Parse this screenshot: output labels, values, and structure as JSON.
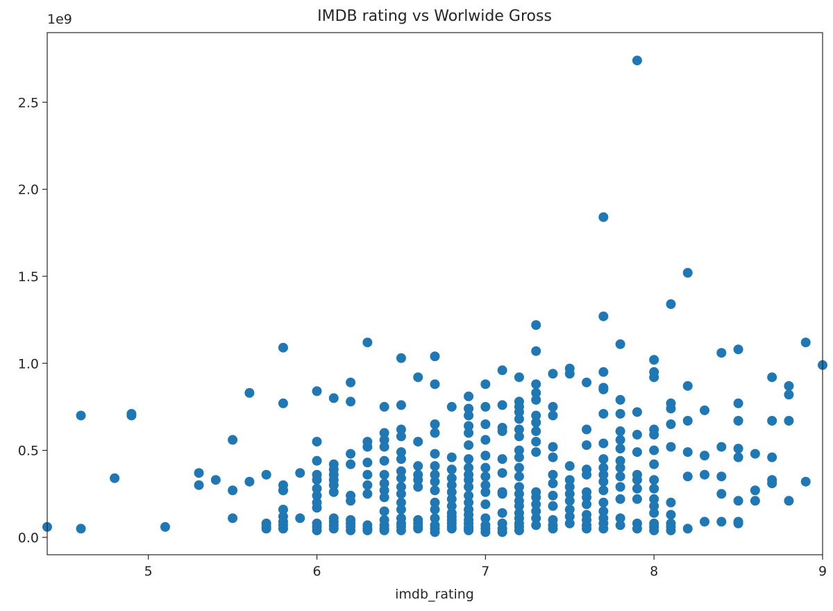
{
  "chart_data": {
    "type": "scatter",
    "title": "IMDB rating vs Worlwide Gross",
    "xlabel": "imdb_rating",
    "ylabel": "",
    "y_offset_label": "1e9",
    "xlim": [
      4.4,
      9.0
    ],
    "ylim": [
      -0.1,
      2.9
    ],
    "grid": false,
    "x_ticks": [
      5,
      6,
      7,
      8,
      9
    ],
    "x_tick_labels": [
      "5",
      "6",
      "7",
      "8",
      "9"
    ],
    "y_ticks": [
      0.0,
      0.5,
      1.0,
      1.5,
      2.0,
      2.5
    ],
    "y_tick_labels": [
      "0.0",
      "0.5",
      "1.0",
      "1.5",
      "2.0",
      "2.5"
    ],
    "colors": {
      "marker": "#1f77b4",
      "axes": "#262626"
    },
    "x": [
      4.4,
      4.6,
      4.6,
      4.8,
      4.9,
      4.9,
      5.1,
      5.3,
      5.3,
      5.4,
      5.5,
      5.5,
      5.5,
      5.6,
      5.6,
      5.7,
      5.7,
      5.7,
      5.7,
      5.8,
      5.8,
      5.8,
      5.8,
      5.8,
      5.8,
      5.8,
      5.8,
      5.8,
      5.8,
      5.9,
      5.9,
      6.0,
      6.0,
      6.0,
      6.0,
      6.0,
      6.0,
      6.0,
      6.0,
      6.0,
      6.0,
      6.0,
      6.0,
      6.1,
      6.1,
      6.1,
      6.1,
      6.1,
      6.1,
      6.1,
      6.1,
      6.1,
      6.1,
      6.1,
      6.2,
      6.2,
      6.2,
      6.2,
      6.2,
      6.2,
      6.2,
      6.2,
      6.2,
      6.2,
      6.3,
      6.3,
      6.3,
      6.3,
      6.3,
      6.3,
      6.3,
      6.3,
      6.3,
      6.3,
      6.4,
      6.4,
      6.4,
      6.4,
      6.4,
      6.4,
      6.4,
      6.4,
      6.4,
      6.4,
      6.4,
      6.4,
      6.4,
      6.4,
      6.5,
      6.5,
      6.5,
      6.5,
      6.5,
      6.5,
      6.5,
      6.5,
      6.5,
      6.5,
      6.5,
      6.5,
      6.5,
      6.5,
      6.5,
      6.5,
      6.6,
      6.6,
      6.6,
      6.6,
      6.6,
      6.6,
      6.6,
      6.6,
      6.6,
      6.6,
      6.7,
      6.7,
      6.7,
      6.7,
      6.7,
      6.7,
      6.7,
      6.7,
      6.7,
      6.7,
      6.7,
      6.7,
      6.7,
      6.7,
      6.7,
      6.8,
      6.8,
      6.8,
      6.8,
      6.8,
      6.8,
      6.8,
      6.8,
      6.8,
      6.8,
      6.8,
      6.8,
      6.8,
      6.8,
      6.9,
      6.9,
      6.9,
      6.9,
      6.9,
      6.9,
      6.9,
      6.9,
      6.9,
      6.9,
      6.9,
      6.9,
      6.9,
      6.9,
      6.9,
      6.9,
      6.9,
      6.9,
      6.9,
      6.9,
      7.0,
      7.0,
      7.0,
      7.0,
      7.0,
      7.0,
      7.0,
      7.0,
      7.0,
      7.0,
      7.0,
      7.0,
      7.0,
      7.0,
      7.1,
      7.1,
      7.1,
      7.1,
      7.1,
      7.1,
      7.1,
      7.1,
      7.1,
      7.1,
      7.1,
      7.1,
      7.2,
      7.2,
      7.2,
      7.2,
      7.2,
      7.2,
      7.2,
      7.2,
      7.2,
      7.2,
      7.2,
      7.2,
      7.2,
      7.2,
      7.2,
      7.2,
      7.2,
      7.2,
      7.2,
      7.2,
      7.3,
      7.3,
      7.3,
      7.3,
      7.3,
      7.3,
      7.3,
      7.3,
      7.3,
      7.3,
      7.3,
      7.3,
      7.3,
      7.3,
      7.3,
      7.3,
      7.4,
      7.4,
      7.4,
      7.4,
      7.4,
      7.4,
      7.4,
      7.4,
      7.4,
      7.4,
      7.4,
      7.4,
      7.5,
      7.5,
      7.5,
      7.5,
      7.5,
      7.5,
      7.5,
      7.5,
      7.5,
      7.5,
      7.6,
      7.6,
      7.6,
      7.6,
      7.6,
      7.6,
      7.6,
      7.6,
      7.6,
      7.6,
      7.6,
      7.6,
      7.7,
      7.7,
      7.7,
      7.7,
      7.7,
      7.7,
      7.7,
      7.7,
      7.7,
      7.7,
      7.7,
      7.7,
      7.7,
      7.7,
      7.7,
      7.7,
      7.7,
      7.8,
      7.8,
      7.8,
      7.8,
      7.8,
      7.8,
      7.8,
      7.8,
      7.8,
      7.8,
      7.8,
      7.8,
      7.8,
      7.9,
      7.9,
      7.9,
      7.9,
      7.9,
      7.9,
      7.9,
      7.9,
      7.9,
      7.9,
      8.0,
      8.0,
      8.0,
      8.0,
      8.0,
      8.0,
      8.0,
      8.0,
      8.0,
      8.0,
      8.0,
      8.0,
      8.0,
      8.0,
      8.0,
      8.1,
      8.1,
      8.1,
      8.1,
      8.1,
      8.1,
      8.1,
      8.1,
      8.1,
      8.1,
      8.2,
      8.2,
      8.2,
      8.2,
      8.2,
      8.2,
      8.3,
      8.3,
      8.3,
      8.3,
      8.4,
      8.4,
      8.4,
      8.4,
      8.4,
      8.5,
      8.5,
      8.5,
      8.5,
      8.5,
      8.5,
      8.5,
      8.5,
      8.6,
      8.6,
      8.6,
      8.7,
      8.7,
      8.7,
      8.7,
      8.7,
      8.8,
      8.8,
      8.8,
      8.8,
      8.9,
      8.9,
      9.0
    ],
    "y": [
      0.06,
      0.7,
      0.05,
      0.34,
      0.7,
      0.71,
      0.06,
      0.37,
      0.3,
      0.33,
      0.56,
      0.27,
      0.11,
      0.83,
      0.32,
      0.36,
      0.08,
      0.06,
      0.05,
      1.09,
      0.77,
      0.3,
      0.27,
      0.16,
      0.12,
      0.09,
      0.07,
      0.05,
      0.27,
      0.37,
      0.11,
      0.84,
      0.55,
      0.44,
      0.36,
      0.33,
      0.28,
      0.24,
      0.17,
      0.08,
      0.06,
      0.04,
      0.2,
      0.8,
      0.42,
      0.39,
      0.36,
      0.33,
      0.3,
      0.26,
      0.09,
      0.07,
      0.05,
      0.11,
      0.89,
      0.78,
      0.48,
      0.42,
      0.24,
      0.21,
      0.08,
      0.06,
      0.04,
      0.1,
      1.12,
      0.55,
      0.52,
      0.43,
      0.36,
      0.3,
      0.25,
      0.07,
      0.05,
      0.04,
      0.75,
      0.6,
      0.56,
      0.52,
      0.44,
      0.36,
      0.31,
      0.27,
      0.23,
      0.15,
      0.1,
      0.07,
      0.05,
      0.04,
      1.03,
      0.76,
      0.62,
      0.58,
      0.49,
      0.45,
      0.38,
      0.34,
      0.29,
      0.25,
      0.2,
      0.16,
      0.11,
      0.08,
      0.06,
      0.04,
      0.92,
      0.55,
      0.41,
      0.36,
      0.33,
      0.29,
      0.1,
      0.08,
      0.06,
      0.05,
      1.04,
      0.88,
      0.65,
      0.6,
      0.48,
      0.41,
      0.36,
      0.32,
      0.27,
      0.2,
      0.16,
      0.11,
      0.07,
      0.05,
      0.03,
      0.75,
      0.46,
      0.39,
      0.34,
      0.3,
      0.26,
      0.22,
      0.18,
      0.14,
      0.1,
      0.08,
      0.06,
      0.05,
      0.12,
      0.81,
      0.74,
      0.7,
      0.64,
      0.6,
      0.53,
      0.45,
      0.4,
      0.36,
      0.33,
      0.29,
      0.24,
      0.2,
      0.16,
      0.13,
      0.1,
      0.08,
      0.06,
      0.05,
      0.04,
      0.88,
      0.75,
      0.65,
      0.56,
      0.47,
      0.4,
      0.35,
      0.3,
      0.26,
      0.19,
      0.11,
      0.07,
      0.05,
      0.03,
      0.96,
      0.76,
      0.63,
      0.61,
      0.45,
      0.37,
      0.26,
      0.25,
      0.14,
      0.08,
      0.05,
      0.03,
      0.92,
      0.78,
      0.75,
      0.72,
      0.68,
      0.62,
      0.58,
      0.5,
      0.46,
      0.4,
      0.35,
      0.29,
      0.25,
      0.21,
      0.18,
      0.14,
      0.11,
      0.08,
      0.06,
      0.04,
      1.22,
      1.07,
      0.88,
      0.83,
      0.79,
      0.7,
      0.66,
      0.61,
      0.55,
      0.49,
      0.26,
      0.23,
      0.19,
      0.15,
      0.11,
      0.07,
      0.94,
      0.75,
      0.7,
      0.52,
      0.46,
      0.36,
      0.31,
      0.24,
      0.18,
      0.1,
      0.07,
      0.05,
      0.97,
      0.94,
      0.41,
      0.33,
      0.29,
      0.25,
      0.21,
      0.16,
      0.12,
      0.08,
      0.89,
      0.62,
      0.53,
      0.39,
      0.36,
      0.26,
      0.23,
      0.19,
      0.13,
      0.1,
      0.07,
      0.05,
      1.84,
      1.27,
      0.95,
      0.86,
      0.85,
      0.71,
      0.54,
      0.45,
      0.4,
      0.36,
      0.32,
      0.27,
      0.2,
      0.15,
      0.11,
      0.08,
      0.05,
      1.11,
      0.79,
      0.71,
      0.61,
      0.56,
      0.51,
      0.44,
      0.4,
      0.35,
      0.29,
      0.22,
      0.11,
      0.07,
      2.74,
      0.72,
      0.59,
      0.49,
      0.36,
      0.33,
      0.28,
      0.22,
      0.08,
      0.05,
      1.02,
      0.95,
      0.92,
      0.62,
      0.59,
      0.5,
      0.42,
      0.33,
      0.28,
      0.22,
      0.18,
      0.14,
      0.08,
      0.06,
      0.04,
      1.34,
      0.77,
      0.74,
      0.65,
      0.52,
      0.2,
      0.13,
      0.08,
      0.06,
      0.04,
      1.52,
      0.87,
      0.67,
      0.49,
      0.35,
      0.05,
      0.73,
      0.47,
      0.36,
      0.09,
      1.06,
      0.52,
      0.35,
      0.25,
      0.09,
      1.08,
      0.77,
      0.67,
      0.51,
      0.46,
      0.21,
      0.08,
      0.09,
      0.48,
      0.27,
      0.21,
      0.92,
      0.67,
      0.46,
      0.33,
      0.31,
      0.87,
      0.82,
      0.67,
      0.21,
      1.12,
      0.32,
      0.99
    ]
  }
}
